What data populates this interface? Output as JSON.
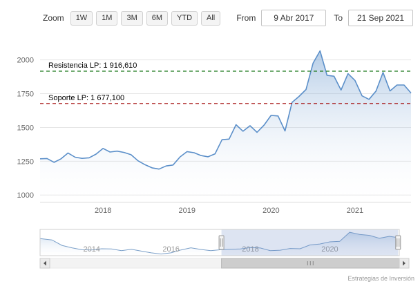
{
  "toolbar": {
    "zoom_label": "Zoom",
    "zoom_buttons": [
      "1W",
      "1M",
      "3M",
      "6M",
      "YTD",
      "All"
    ],
    "from_label": "From",
    "from_value": "9 Abr 2017",
    "to_label": "To",
    "to_value": "21 Sep 2021"
  },
  "chart_data": {
    "type": "area",
    "title": "",
    "xlabel": "",
    "ylabel": "",
    "months": [
      "2017-04",
      "2017-05",
      "2017-06",
      "2017-07",
      "2017-08",
      "2017-09",
      "2017-10",
      "2017-11",
      "2017-12",
      "2018-01",
      "2018-02",
      "2018-03",
      "2018-04",
      "2018-05",
      "2018-06",
      "2018-07",
      "2018-08",
      "2018-09",
      "2018-10",
      "2018-11",
      "2018-12",
      "2019-01",
      "2019-02",
      "2019-03",
      "2019-04",
      "2019-05",
      "2019-06",
      "2019-07",
      "2019-08",
      "2019-09",
      "2019-10",
      "2019-11",
      "2019-12",
      "2020-01",
      "2020-02",
      "2020-03",
      "2020-04",
      "2020-05",
      "2020-06",
      "2020-07",
      "2020-08",
      "2020-09",
      "2020-10",
      "2020-11",
      "2020-12",
      "2021-01",
      "2021-02",
      "2021-03",
      "2021-04",
      "2021-05",
      "2021-06",
      "2021-07",
      "2021-08",
      "2021-09"
    ],
    "values": [
      1268,
      1270,
      1242,
      1268,
      1311,
      1280,
      1271,
      1275,
      1303,
      1345,
      1318,
      1325,
      1315,
      1298,
      1253,
      1224,
      1201,
      1192,
      1215,
      1222,
      1282,
      1321,
      1313,
      1292,
      1283,
      1305,
      1409,
      1414,
      1520,
      1472,
      1513,
      1464,
      1517,
      1589,
      1585,
      1474,
      1686,
      1730,
      1781,
      1976,
      2067,
      1886,
      1879,
      1777,
      1898,
      1848,
      1734,
      1708,
      1769,
      1907,
      1770,
      1814,
      1814,
      1755
    ],
    "ylim": [
      950,
      2075
    ],
    "yticks": [
      1000,
      1250,
      1500,
      1750,
      2000
    ],
    "xticks": [
      "2018",
      "2019",
      "2020",
      "2021"
    ],
    "series_color": "#5b8fc9",
    "grid_color": "#e6e6e6",
    "annotations": [
      {
        "name": "resistencia",
        "label": "Resistencia LP: 1 916,610",
        "value": 1916.61,
        "color": "#1e7a1e",
        "style": "dashed"
      },
      {
        "name": "soporte",
        "label": "Soporte LP: 1 677,100",
        "value": 1677.1,
        "color": "#a00000",
        "style": "dashed"
      }
    ],
    "navigator": {
      "xlim": [
        2012.7,
        2021.75
      ],
      "ylim": [
        1000,
        2100
      ],
      "x": [
        2012.7,
        2013.0,
        2013.25,
        2013.5,
        2013.75,
        2014.0,
        2014.25,
        2014.5,
        2014.75,
        2015.0,
        2015.25,
        2015.5,
        2015.75,
        2016.0,
        2016.25,
        2016.5,
        2016.75,
        2017.0,
        2017.25,
        2017.5,
        2017.75,
        2018.0,
        2018.25,
        2018.5,
        2018.75,
        2019.0,
        2019.25,
        2019.5,
        2019.75,
        2020.0,
        2020.25,
        2020.5,
        2020.75,
        2021.0,
        2021.25,
        2021.5,
        2021.72
      ],
      "values": [
        1715,
        1660,
        1430,
        1330,
        1250,
        1240,
        1290,
        1285,
        1210,
        1270,
        1190,
        1120,
        1070,
        1120,
        1240,
        1330,
        1260,
        1210,
        1250,
        1270,
        1280,
        1340,
        1320,
        1210,
        1230,
        1300,
        1290,
        1450,
        1490,
        1580,
        1600,
        1980,
        1890,
        1850,
        1730,
        1810,
        1755
      ],
      "xticks": [
        "2014",
        "2016",
        "2018",
        "2020"
      ],
      "selected": {
        "from": 2017.27,
        "to": 2021.72
      },
      "mask_color": "rgba(102,133,194,0.22)"
    }
  },
  "credit": "Estrategias de Inversión"
}
